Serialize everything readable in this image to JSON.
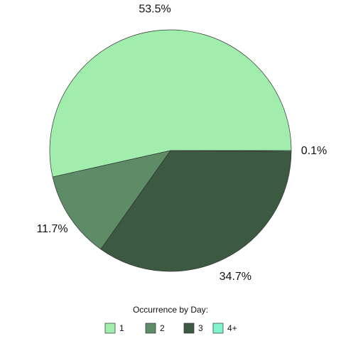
{
  "chart_data": {
    "type": "pie",
    "legend_title": "Occurrence by Day:",
    "categories": [
      "1",
      "2",
      "3",
      "4+"
    ],
    "values": [
      53.5,
      11.7,
      34.7,
      0.1
    ],
    "value_labels": [
      "53.5%",
      "11.7%",
      "34.7%",
      "0.1%"
    ],
    "colors": [
      "#a0edae",
      "#5e8c66",
      "#3b5a41",
      "#80f5cd"
    ],
    "legend": "bottom"
  }
}
